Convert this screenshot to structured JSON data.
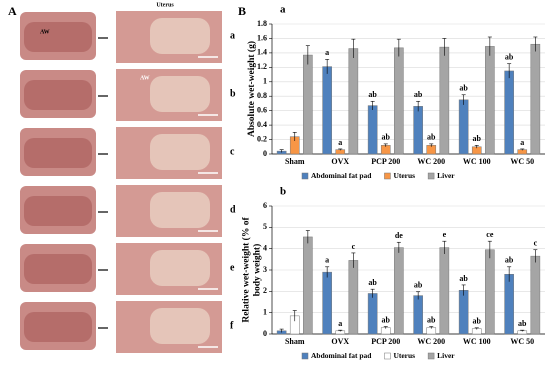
{
  "panel_a": {
    "label": "A",
    "column_title": "Uterus",
    "aw_labels": [
      "AW",
      "AW"
    ],
    "row_labels": [
      "a",
      "b",
      "c",
      "d",
      "e",
      "f"
    ]
  },
  "panel_b": {
    "label": "B"
  },
  "chart_data": [
    {
      "type": "bar",
      "title": "a",
      "ylabel": [
        "Absolute wet-weight (g)"
      ],
      "categories": [
        "Sham",
        "OVX",
        "PCP 200",
        "WC 200",
        "WC 100",
        "WC 50"
      ],
      "ylim": [
        0,
        1.8
      ],
      "yticks": [
        0,
        0.2,
        0.4,
        0.6,
        0.8,
        1,
        1.2,
        1.4,
        1.6,
        1.8
      ],
      "series": [
        {
          "name": "Abdominal fat pad",
          "color": "#4f81bd",
          "values": [
            0.04,
            1.21,
            0.67,
            0.66,
            0.75,
            1.15
          ],
          "errors": [
            0.02,
            0.1,
            0.06,
            0.07,
            0.07,
            0.1
          ],
          "significance": [
            null,
            "a",
            "ab",
            "ab",
            "ab",
            "ab"
          ]
        },
        {
          "name": "Uterus",
          "color": "#f79646",
          "values": [
            0.24,
            0.06,
            0.12,
            0.12,
            0.1,
            0.06
          ],
          "errors": [
            0.06,
            0.01,
            0.02,
            0.02,
            0.02,
            0.01
          ],
          "significance": [
            null,
            "a",
            "ab",
            "ab",
            "ab",
            "a"
          ]
        },
        {
          "name": "Liver",
          "color": "#a5a5a5",
          "values": [
            1.37,
            1.46,
            1.47,
            1.48,
            1.49,
            1.52
          ],
          "errors": [
            0.13,
            0.13,
            0.12,
            0.12,
            0.13,
            0.1
          ],
          "significance": [
            null,
            null,
            null,
            null,
            null,
            null
          ]
        }
      ]
    },
    {
      "type": "bar",
      "title": "b",
      "ylabel": [
        "Relative wet-weight (% of",
        "body weight)"
      ],
      "categories": [
        "Sham",
        "OVX",
        "PCP 200",
        "WC 200",
        "WC 100",
        "WC 50"
      ],
      "ylim": [
        0,
        6
      ],
      "yticks": [
        0,
        1,
        2,
        3,
        4,
        5,
        6
      ],
      "series": [
        {
          "name": "Abdominal fat pad",
          "color": "#4f81bd",
          "values": [
            0.15,
            2.9,
            1.9,
            1.8,
            2.05,
            2.8
          ],
          "errors": [
            0.08,
            0.25,
            0.2,
            0.18,
            0.25,
            0.35
          ],
          "significance": [
            null,
            "a",
            "ab",
            "ab",
            "ab",
            "ab"
          ]
        },
        {
          "name": "Uterus",
          "color": "#ffffff",
          "values": [
            0.85,
            0.15,
            0.3,
            0.3,
            0.25,
            0.15
          ],
          "errors": [
            0.25,
            0.03,
            0.05,
            0.05,
            0.04,
            0.03
          ],
          "significance": [
            null,
            "a",
            "ab",
            "ab",
            "ab",
            "ab"
          ]
        },
        {
          "name": "Liver",
          "color": "#a5a5a5",
          "values": [
            4.55,
            3.45,
            4.05,
            4.05,
            3.95,
            3.65
          ],
          "errors": [
            0.3,
            0.35,
            0.25,
            0.3,
            0.4,
            0.3
          ],
          "significance": [
            null,
            "c",
            "de",
            "e",
            "ce",
            "c"
          ]
        }
      ]
    }
  ]
}
